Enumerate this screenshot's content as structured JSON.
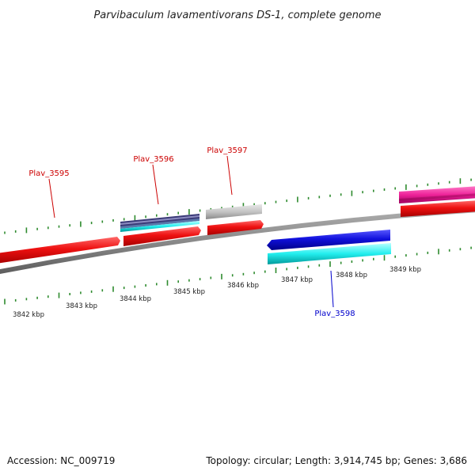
{
  "title": "Parvibaculum lavamentivorans DS-1, complete genome",
  "footer": {
    "accession": "Accession: NC_009719",
    "summary": "Topology: circular; Length: 3,914,745 bp; Genes: 3,686"
  },
  "colors": {
    "backbone": "#8a8a8a",
    "tick": "#2e8b2e",
    "forward_label": "#cc0000",
    "reverse_label": "#0000cc"
  },
  "genes": [
    {
      "id": "Plav_3595",
      "strand": "+",
      "color": "#ee1111"
    },
    {
      "id": "Plav_3596",
      "strand": "+",
      "color": "#ee1111"
    },
    {
      "id": "Plav_3597",
      "strand": "+",
      "color": "#ee1111"
    },
    {
      "id": "Plav_3598",
      "strand": "-",
      "color": "#1111dd"
    }
  ],
  "tick_labels": [
    "3842 kbp",
    "3843 kbp",
    "3844 kbp",
    "3845 kbp",
    "3846 kbp",
    "3847 kbp",
    "3848 kbp",
    "3849 kbp"
  ]
}
